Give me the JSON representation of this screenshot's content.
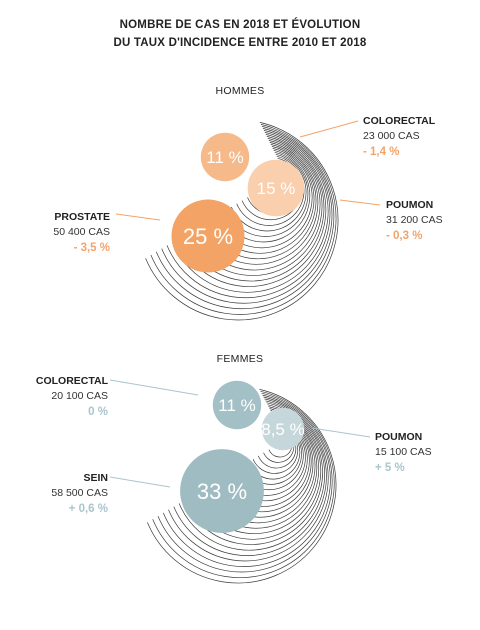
{
  "chart_data": {
    "type": "bubble",
    "title": "NOMBRE DE CAS EN 2018 ET ÉVOLUTION\nDU TAUX D'INCIDENCE ENTRE 2010 ET 2018",
    "groups": [
      {
        "name": "HOMMES",
        "accent": "#f2a36a",
        "items": [
          {
            "label": "COLORECTAL",
            "cases": "23 000 CAS",
            "trend": "- 1,4 %",
            "share": "11 %",
            "value": 11,
            "color": "#f5b98a"
          },
          {
            "label": "POUMON",
            "cases": "31 200 CAS",
            "trend": "- 0,3 %",
            "share": "15 %",
            "value": 15,
            "color": "#f9cfae"
          },
          {
            "label": "PROSTATE",
            "cases": "50 400 CAS",
            "trend": "- 3,5 %",
            "share": "25 %",
            "value": 25,
            "color": "#f2a365"
          }
        ]
      },
      {
        "name": "FEMMES",
        "accent": "#a9c5cc",
        "items": [
          {
            "label": "COLORECTAL",
            "cases": "20 100 CAS",
            "trend": "0 %",
            "share": "11 %",
            "value": 11,
            "color": "#a3c0c7"
          },
          {
            "label": "POUMON",
            "cases": "15 100 CAS",
            "trend": "+ 5 %",
            "share": "8,5 %",
            "value": 8.5,
            "color": "#c5d7db"
          },
          {
            "label": "SEIN",
            "cases": "58 500 CAS",
            "trend": "+ 0,6 %",
            "share": "33 %",
            "value": 33,
            "color": "#9fbcc3"
          }
        ]
      }
    ]
  }
}
